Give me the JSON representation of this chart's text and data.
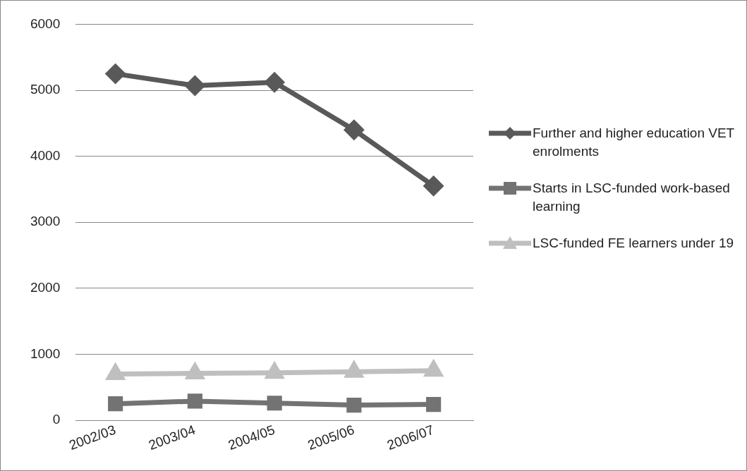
{
  "chart_data": {
    "type": "line",
    "categories": [
      "2002/03",
      "2003/04",
      "2004/05",
      "2005/06",
      "2006/07"
    ],
    "series": [
      {
        "name": "Further and higher education VET enrolments",
        "color": "#595959",
        "marker": "diamond",
        "values": [
          5250,
          5070,
          5120,
          4400,
          3550
        ]
      },
      {
        "name": "Starts in LSC-funded work-based learning",
        "color": "#737373",
        "marker": "square",
        "values": [
          250,
          290,
          260,
          230,
          240
        ]
      },
      {
        "name": "LSC-funded FE learners under 19",
        "color": "#bfbfbf",
        "marker": "triangle",
        "values": [
          700,
          710,
          720,
          735,
          750
        ]
      }
    ],
    "ylim": [
      0,
      6000
    ],
    "yticks": [
      0,
      1000,
      2000,
      3000,
      4000,
      5000,
      6000
    ],
    "grid": "y",
    "legend": "right",
    "line_style": "solid"
  }
}
